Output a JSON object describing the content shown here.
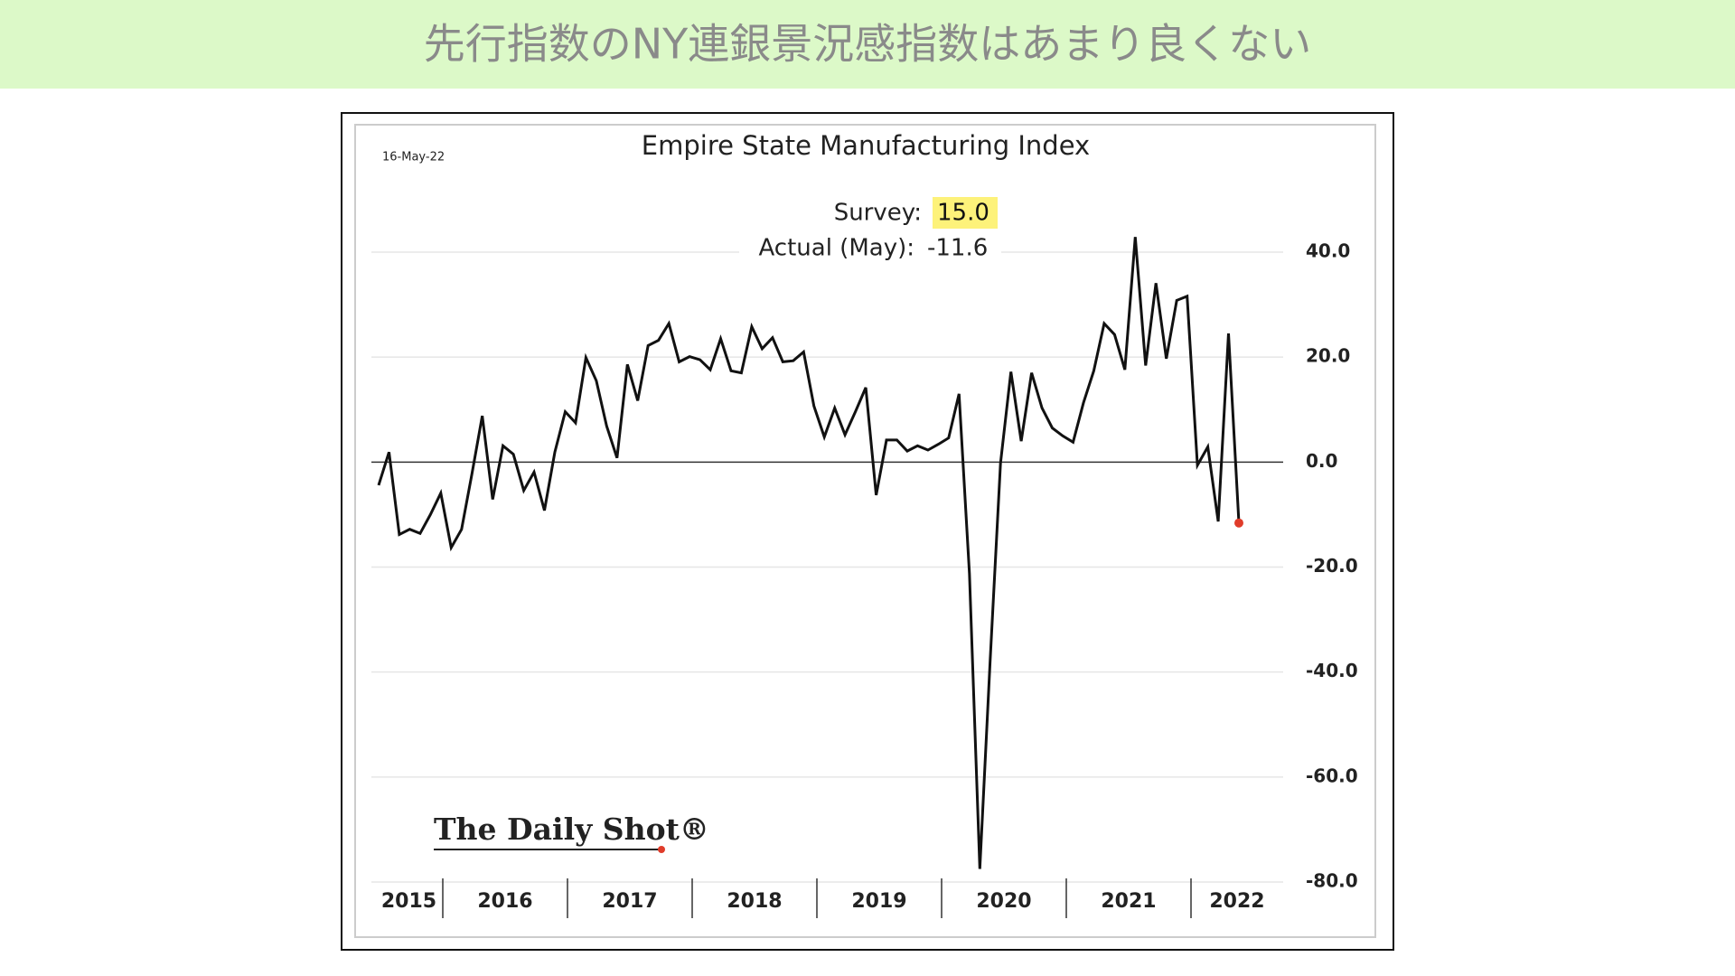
{
  "slide_title": "先行指数のNY連銀景況感指数はあまり良くない",
  "chart_data": {
    "type": "line",
    "title": "Empire State Manufacturing Index",
    "date": "16-May-22",
    "annotations": {
      "survey_label": "Survey:",
      "survey_value": "15.0",
      "actual_label": "Actual (May):",
      "actual_value": "-11.6"
    },
    "source": "The Daily Shot®",
    "year_labels": [
      "2015",
      "2016",
      "2017",
      "2018",
      "2019",
      "2020",
      "2021",
      "2022"
    ],
    "series": [
      {
        "name": "Empire State Manufacturing Index",
        "color": "#111111",
        "last_point_color": "#e03c2a",
        "values": [
          -4.4,
          1.9,
          -13.8,
          -12.8,
          -13.6,
          -10,
          -5.9,
          -16.3,
          -12.8,
          -2.3,
          8.8,
          -7.1,
          3.1,
          1.5,
          -5.4,
          -1.9,
          -9.2,
          1.9,
          9.6,
          7.5,
          19.9,
          15.5,
          6.9,
          0.8,
          18.6,
          11.7,
          22.2,
          23.2,
          26.4,
          19.1,
          20.1,
          19.5,
          17.6,
          23.5,
          17.4,
          17.0,
          25.8,
          21.6,
          23.7,
          19.1,
          19.3,
          21.0,
          10.7,
          4.8,
          10.3,
          5.2,
          9.6,
          14.2,
          -6.3,
          4.2,
          4.2,
          2.1,
          3.1,
          2.3,
          3.4,
          4.6,
          13.0,
          -21.2,
          -77.5,
          -37.9,
          -0.2,
          17.2,
          4.0,
          17.0,
          10.3,
          6.5,
          5.0,
          3.8,
          11.3,
          17.4,
          26.4,
          24.3,
          17.6,
          42.9,
          18.4,
          34.1,
          19.7,
          30.8,
          31.6,
          -0.6,
          2.9,
          -11.3,
          24.5,
          -11.6
        ]
      }
    ],
    "ylim": [
      -80,
      40
    ],
    "yticks": [
      {
        "value": -80,
        "label": "-80.0"
      },
      {
        "value": -60,
        "label": "-60.0"
      },
      {
        "value": -40,
        "label": "-40.0"
      },
      {
        "value": -20,
        "label": "-20.0"
      },
      {
        "value": 0,
        "label": "0.0"
      },
      {
        "value": 20,
        "label": "20.0"
      },
      {
        "value": 40,
        "label": "40.0"
      }
    ],
    "grid": true
  }
}
